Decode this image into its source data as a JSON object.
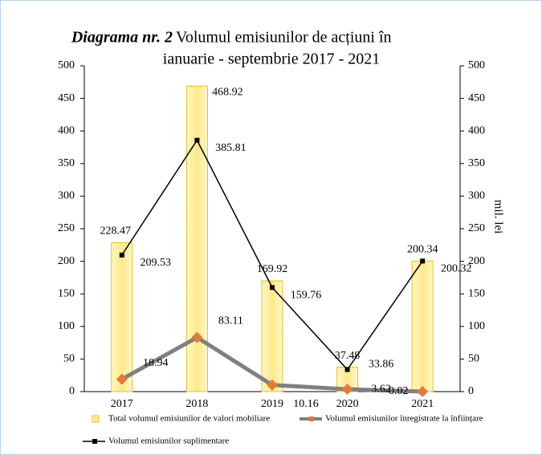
{
  "chart_data": {
    "type": "bar-line",
    "title_emphasis": "Diagrama nr. 2",
    "title_lines": [
      "Volumul emisiunilor de acțiuni în",
      "ianuarie - septembrie  2017 - 2021"
    ],
    "y2_label": "mil. lei",
    "categories": [
      "2017",
      "2018",
      "2019",
      "2020",
      "2021"
    ],
    "series": [
      {
        "name": "Total volumul emisiunilor de valori mobiliare",
        "kind": "bar",
        "color": "#fde98a",
        "values": [
          228.47,
          468.92,
          169.92,
          37.48,
          200.34
        ]
      },
      {
        "name": "Volumul emisiunilor înregistrate la înființare",
        "kind": "line",
        "color": "#808080",
        "marker_color": "#e07b39",
        "values": [
          18.94,
          83.11,
          10.16,
          3.62,
          0.02
        ]
      },
      {
        "name": "Volumul emisiunilor suplimentare",
        "kind": "line",
        "axis": "y2",
        "color": "#000000",
        "marker_color": "#000000",
        "values": [
          209.53,
          385.81,
          159.76,
          33.86,
          200.32
        ]
      }
    ],
    "ylim": [
      0,
      500
    ],
    "yticks": [
      0,
      50,
      100,
      150,
      200,
      250,
      300,
      350,
      400,
      450,
      500
    ],
    "y2lim": [
      0,
      500
    ],
    "y2ticks": [
      0,
      50,
      100,
      150,
      200,
      250,
      300,
      350,
      400,
      450,
      500
    ]
  }
}
